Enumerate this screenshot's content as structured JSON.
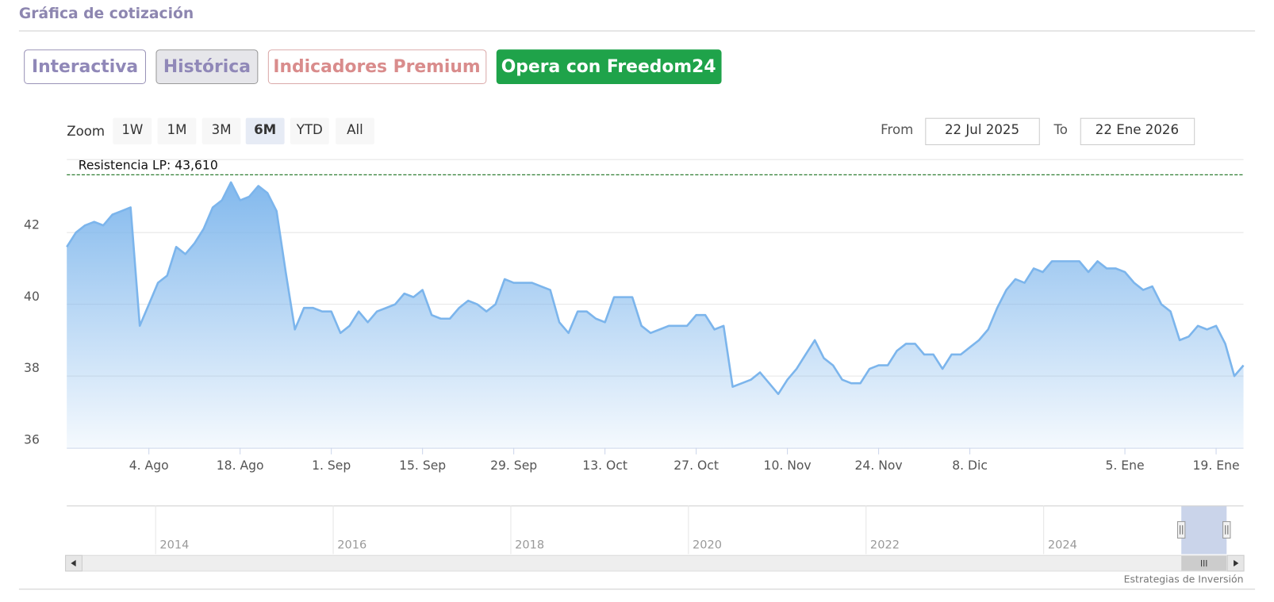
{
  "header": {
    "title": "Gráfica de cotización"
  },
  "tabs": [
    "Interactiva",
    "Histórica",
    "Indicadores Premium",
    "Opera con Freedom24"
  ],
  "zoom": {
    "label": "Zoom",
    "options": [
      "1W",
      "1M",
      "3M",
      "6M",
      "YTD",
      "All"
    ],
    "selected_index": 3
  },
  "range": {
    "from_label": "From",
    "from": "22 Jul 2025",
    "to_label": "To",
    "to": "22 Ene 2026"
  },
  "chart_data": {
    "type": "area",
    "color": "#7cb5ec",
    "ylim": [
      36,
      44
    ],
    "yticks": [
      36,
      38,
      40,
      42
    ],
    "grid": true,
    "annotations": [
      {
        "label": "Resistencia LP: 43,610",
        "value": 43.61
      }
    ],
    "categories": [
      null,
      null,
      null,
      null,
      null,
      null,
      null,
      null,
      null,
      "4. Ago",
      null,
      null,
      null,
      null,
      null,
      null,
      null,
      null,
      null,
      "18. Ago",
      null,
      null,
      null,
      null,
      null,
      null,
      null,
      null,
      null,
      "1. Sep",
      null,
      null,
      null,
      null,
      null,
      null,
      null,
      null,
      null,
      "15. Sep",
      null,
      null,
      null,
      null,
      null,
      null,
      null,
      null,
      null,
      "29. Sep",
      null,
      null,
      null,
      null,
      null,
      null,
      null,
      null,
      null,
      "13. Oct",
      null,
      null,
      null,
      null,
      null,
      null,
      null,
      null,
      null,
      "27. Oct",
      null,
      null,
      null,
      null,
      null,
      null,
      null,
      null,
      null,
      "10. Nov",
      null,
      null,
      null,
      null,
      null,
      null,
      null,
      null,
      null,
      "24. Nov",
      null,
      null,
      null,
      null,
      null,
      null,
      null,
      null,
      null,
      "8. Dic",
      null,
      null,
      null,
      null,
      null,
      null,
      null,
      null,
      null,
      null,
      null,
      null,
      null,
      null,
      null,
      null,
      "5. Ene",
      null,
      null,
      null,
      null,
      null,
      null,
      null,
      null,
      null,
      "19. Ene",
      null,
      null,
      null
    ],
    "values": [
      41.6,
      42.0,
      42.2,
      42.3,
      42.2,
      42.5,
      42.6,
      42.7,
      39.4,
      40.0,
      40.6,
      40.8,
      41.6,
      41.4,
      41.7,
      42.1,
      42.7,
      42.9,
      43.4,
      42.9,
      43.0,
      43.3,
      43.1,
      42.6,
      40.9,
      39.3,
      39.9,
      39.9,
      39.8,
      39.8,
      39.2,
      39.4,
      39.8,
      39.5,
      39.8,
      39.9,
      40.0,
      40.3,
      40.2,
      40.4,
      39.7,
      39.6,
      39.6,
      39.9,
      40.1,
      40.0,
      39.8,
      40.0,
      40.7,
      40.6,
      40.6,
      40.6,
      40.5,
      40.4,
      39.5,
      39.2,
      39.8,
      39.8,
      39.6,
      39.5,
      40.2,
      40.2,
      40.2,
      39.4,
      39.2,
      39.3,
      39.4,
      39.4,
      39.4,
      39.7,
      39.7,
      39.3,
      39.4,
      37.7,
      37.8,
      37.9,
      38.1,
      37.8,
      37.5,
      37.9,
      38.2,
      38.6,
      39.0,
      38.5,
      38.3,
      37.9,
      37.8,
      37.8,
      38.2,
      38.3,
      38.3,
      38.7,
      38.9,
      38.9,
      38.6,
      38.6,
      38.2,
      38.6,
      38.6,
      38.8,
      39.0,
      39.3,
      39.9,
      40.4,
      40.7,
      40.6,
      41.0,
      40.9,
      41.2,
      41.2,
      41.2,
      41.2,
      40.9,
      41.2,
      41.0,
      41.0,
      40.9,
      40.6,
      40.4,
      40.5,
      40.0,
      39.8,
      39.0,
      39.1,
      39.4,
      39.3,
      39.4,
      38.9,
      38.0,
      38.3
    ]
  },
  "navigator": {
    "xlim": [
      2013,
      2026.25
    ],
    "xticks": [
      2014,
      2016,
      2018,
      2020,
      2022,
      2024
    ],
    "selection": [
      2025.55,
      2026.06
    ]
  },
  "credit": "Estrategias de Inversión"
}
